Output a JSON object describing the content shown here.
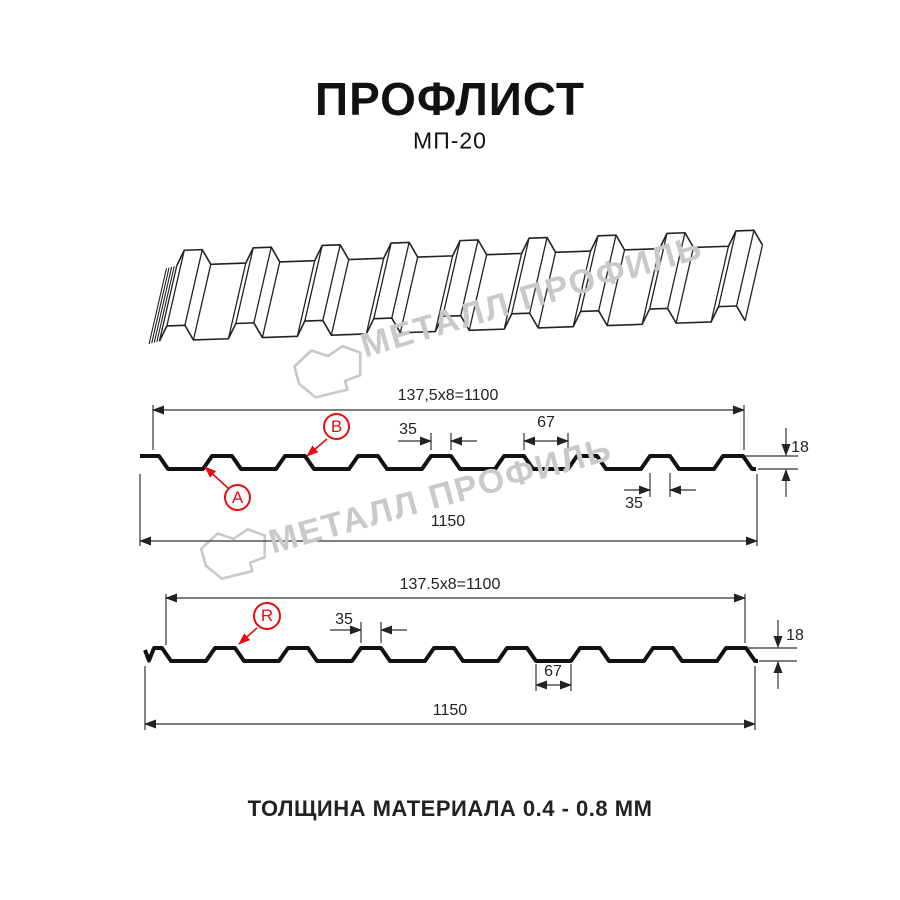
{
  "title": "ПРОФЛИСТ",
  "subtitle": "МП-20",
  "watermark_text": "МЕТАЛЛ ПРОФИЛЬ",
  "footer": "ТОЛЩИНА МАТЕРИАЛА 0.4 - 0.8 ММ",
  "section_top": {
    "period_dim": "137,5x8=1100",
    "crest_width_dim": "35",
    "valley_width_dim": "67",
    "bottom_crest_dim": "35",
    "height_dim": "18",
    "overall_width_dim": "1150",
    "label_a": "A",
    "label_b": "B"
  },
  "section_bottom": {
    "period_dim": "137.5x8=1100",
    "crest_width_dim": "35",
    "valley_width_dim": "67",
    "height_dim": "18",
    "overall_width_dim": "1150",
    "label_r": "R"
  },
  "colors": {
    "red": "#e60d0d",
    "line_dark": "#111111",
    "watermark_gray": "#c9c9c9"
  }
}
